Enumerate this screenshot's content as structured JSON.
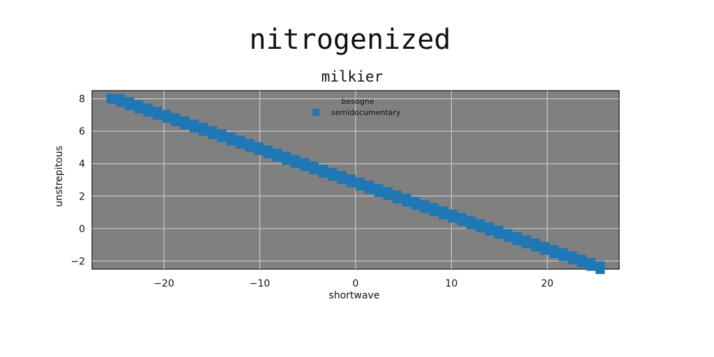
{
  "chart_data": {
    "type": "area",
    "title": "nitrogenized",
    "subtitle": "milkier",
    "xlabel": "shortwave",
    "ylabel": "unstrepitous",
    "xlim": [
      -27.5,
      27.5
    ],
    "ylim": [
      -2.5,
      8.5
    ],
    "xticks": [
      -20,
      -10,
      0,
      10,
      20
    ],
    "yticks": [
      -2,
      0,
      2,
      4,
      6,
      8
    ],
    "grid": true,
    "legend": {
      "title": "besogne",
      "placement": "top-center"
    },
    "series": [
      {
        "name": "semidocumentary",
        "x": [
          -26,
          26
        ],
        "upper": [
          8.3,
          -2.4
        ],
        "lower": [
          7.7,
          -3.0
        ]
      }
    ],
    "colors": {
      "fill": "#1f77b4",
      "background": "#808080",
      "grid": "#c8c8c8"
    }
  }
}
